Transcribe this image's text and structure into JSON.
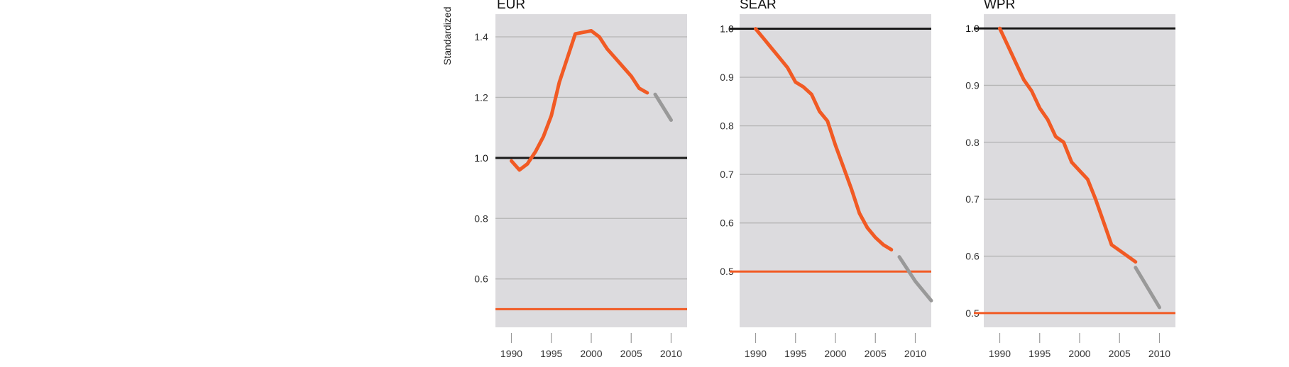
{
  "y_axis_label": "Standardized",
  "chart_data": [
    {
      "type": "line",
      "title": "EUR",
      "xlim": [
        1988,
        2012
      ],
      "ylim": [
        0.44,
        1.475
      ],
      "yticks": [
        0.6,
        0.8,
        1.0,
        1.2,
        1.4
      ],
      "ytick_labels": [
        "0.6",
        "0.8",
        "1.0",
        "1.2",
        "1.4"
      ],
      "xticks": [
        1990,
        1995,
        2000,
        2005,
        2010
      ],
      "xtick_labels": [
        "1990",
        "1995",
        "2000",
        "2005",
        "2010"
      ],
      "reference_line": 1.0,
      "target_line": 0.5,
      "series": [
        {
          "style": "observed",
          "color": "#f15a24",
          "x": [
            1990,
            1991,
            1992,
            1993,
            1994,
            1995,
            1996,
            1997,
            1998,
            1999,
            2000,
            2001,
            2002,
            2003,
            2004,
            2005,
            2006,
            2007
          ],
          "y": [
            0.99,
            0.96,
            0.98,
            1.02,
            1.07,
            1.14,
            1.25,
            1.33,
            1.41,
            1.415,
            1.42,
            1.4,
            1.36,
            1.33,
            1.3,
            1.27,
            1.23,
            1.215
          ]
        },
        {
          "style": "projected",
          "color": "#999999",
          "x": [
            2008,
            2010
          ],
          "y": [
            1.21,
            1.125
          ]
        }
      ],
      "grid": true
    },
    {
      "type": "line",
      "title": "SEAR",
      "xlim": [
        1988,
        2012
      ],
      "ylim": [
        0.385,
        1.03
      ],
      "yticks": [
        0.5,
        0.6,
        0.7,
        0.8,
        0.9,
        1.0
      ],
      "ytick_labels": [
        "0.5",
        "0.6",
        "0.7",
        "0.8",
        "0.9",
        "1.0"
      ],
      "xticks": [
        1990,
        1995,
        2000,
        2005,
        2010
      ],
      "xtick_labels": [
        "1990",
        "1995",
        "2000",
        "2005",
        "2010"
      ],
      "reference_line": 1.0,
      "target_line": 0.5,
      "series": [
        {
          "style": "observed",
          "color": "#f15a24",
          "x": [
            1990,
            1991,
            1992,
            1993,
            1994,
            1995,
            1996,
            1997,
            1998,
            1999,
            2000,
            2001,
            2002,
            2003,
            2004,
            2005,
            2006,
            2007
          ],
          "y": [
            1.0,
            0.98,
            0.96,
            0.94,
            0.92,
            0.89,
            0.88,
            0.865,
            0.83,
            0.81,
            0.76,
            0.715,
            0.67,
            0.62,
            0.59,
            0.57,
            0.555,
            0.545
          ]
        },
        {
          "style": "projected",
          "color": "#999999",
          "x": [
            2008,
            2010,
            2012
          ],
          "y": [
            0.53,
            0.48,
            0.44
          ]
        }
      ],
      "grid": true
    },
    {
      "type": "line",
      "title": "WPR",
      "xlim": [
        1988,
        2012
      ],
      "ylim": [
        0.475,
        1.025
      ],
      "yticks": [
        0.5,
        0.6,
        0.7,
        0.8,
        0.9,
        1.0
      ],
      "ytick_labels": [
        "0.5",
        "0.6",
        "0.7",
        "0.8",
        "0.9",
        "1.0"
      ],
      "xticks": [
        1990,
        1995,
        2000,
        2005,
        2010
      ],
      "xtick_labels": [
        "1990",
        "1995",
        "2000",
        "2005",
        "2010"
      ],
      "reference_line": 1.0,
      "target_line": 0.5,
      "series": [
        {
          "style": "observed",
          "color": "#f15a24",
          "x": [
            1990,
            1991,
            1992,
            1993,
            1994,
            1995,
            1996,
            1997,
            1998,
            1999,
            2000,
            2001,
            2002,
            2003,
            2004,
            2005,
            2006,
            2007
          ],
          "y": [
            1.0,
            0.97,
            0.94,
            0.91,
            0.89,
            0.86,
            0.84,
            0.81,
            0.8,
            0.765,
            0.75,
            0.735,
            0.7,
            0.66,
            0.62,
            0.61,
            0.6,
            0.59
          ]
        },
        {
          "style": "projected",
          "color": "#999999",
          "x": [
            2007,
            2010
          ],
          "y": [
            0.58,
            0.51
          ]
        }
      ],
      "grid": true
    }
  ],
  "colors": {
    "panel_bg": "#dcdbde",
    "grid": "#b5b5b5",
    "reference": "#1a1a1a",
    "target": "#f15a24",
    "observed": "#f15a24",
    "projected": "#999999"
  }
}
